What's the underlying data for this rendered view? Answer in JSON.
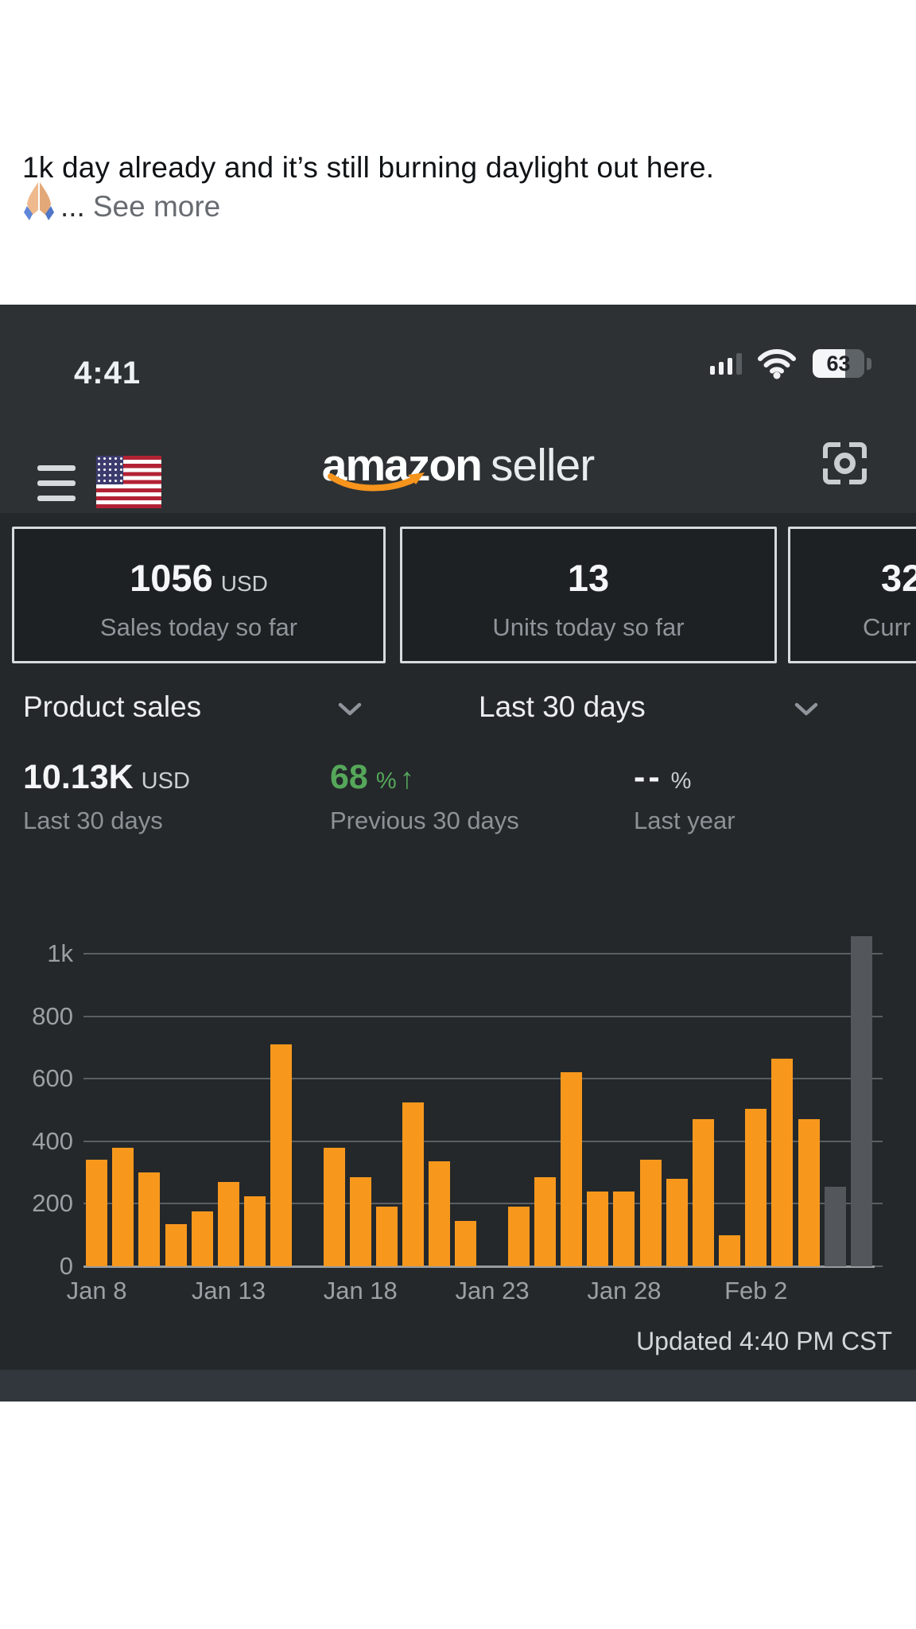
{
  "post": {
    "line1": "1k day already and it’s still burning daylight out here.",
    "emoji": "🙏🏼",
    "truncation": "...",
    "see_more": "See more"
  },
  "status_bar": {
    "time": "4:41",
    "battery_percent": "63",
    "signal_icon": "cellular-signal",
    "wifi_icon": "wifi"
  },
  "header": {
    "logo_primary": "amazon",
    "logo_secondary": "seller",
    "flag": "us-flag",
    "menu_icon": "hamburger",
    "scan_icon": "camera-scan"
  },
  "summary_cards": [
    {
      "value": "1056",
      "unit": "USD",
      "label": "Sales today so far"
    },
    {
      "value": "13",
      "unit": "",
      "label": "Units today so far"
    },
    {
      "value": "32",
      "unit": "",
      "label": "Curr"
    }
  ],
  "filters": {
    "metric_label": "Product sales",
    "period_label": "Last 30 days"
  },
  "stats": [
    {
      "value": "10.13K",
      "unit": "USD",
      "label": "Last 30 days"
    },
    {
      "value": "68",
      "unit": "%",
      "arrow": "↑",
      "label": "Previous 30 days"
    },
    {
      "value": "--",
      "unit": "%",
      "label": "Last year"
    }
  ],
  "chart_data": {
    "type": "bar",
    "title": "Product sales - Last 30 days",
    "x": [
      "Jan 8",
      "Jan 9",
      "Jan 10",
      "Jan 11",
      "Jan 12",
      "Jan 13",
      "Jan 14",
      "Jan 15",
      "Jan 16",
      "Jan 17",
      "Jan 18",
      "Jan 19",
      "Jan 20",
      "Jan 21",
      "Jan 22",
      "Jan 23",
      "Jan 24",
      "Jan 25",
      "Jan 26",
      "Jan 27",
      "Jan 28",
      "Jan 29",
      "Jan 30",
      "Jan 31",
      "Feb 1",
      "Feb 2",
      "Feb 3",
      "Feb 4",
      "Feb 5",
      "Feb 6"
    ],
    "values": [
      340,
      380,
      300,
      135,
      175,
      270,
      225,
      710,
      0,
      380,
      285,
      190,
      525,
      335,
      145,
      0,
      190,
      285,
      620,
      240,
      240,
      340,
      280,
      470,
      100,
      505,
      665,
      470,
      255,
      1055
    ],
    "bar_color_default": "#f7981d",
    "muted_bar_indices": [
      28,
      29
    ],
    "muted_bar_color": "#53575b",
    "xtick_indices": [
      0,
      5,
      10,
      15,
      20,
      25
    ],
    "xtick_labels": [
      "Jan 8",
      "Jan 13",
      "Jan 18",
      "Jan 23",
      "Jan 28",
      "Feb 2"
    ],
    "yticks": [
      {
        "value": 0,
        "label": "0"
      },
      {
        "value": 200,
        "label": "200"
      },
      {
        "value": 400,
        "label": "400"
      },
      {
        "value": 600,
        "label": "600"
      },
      {
        "value": 800,
        "label": "800"
      },
      {
        "value": 1000,
        "label": "1k"
      }
    ],
    "ylim": [
      0,
      1000
    ],
    "grid": true,
    "xlabel": "",
    "ylabel": ""
  },
  "footer": {
    "updated_label": "Updated 4:40 PM CST"
  },
  "colors": {
    "accent_orange": "#f7981d",
    "muted_bar_gray": "#53575b",
    "positive_green": "#55a759",
    "phone_bg": "#24282b",
    "header_bg": "#2d3134"
  }
}
